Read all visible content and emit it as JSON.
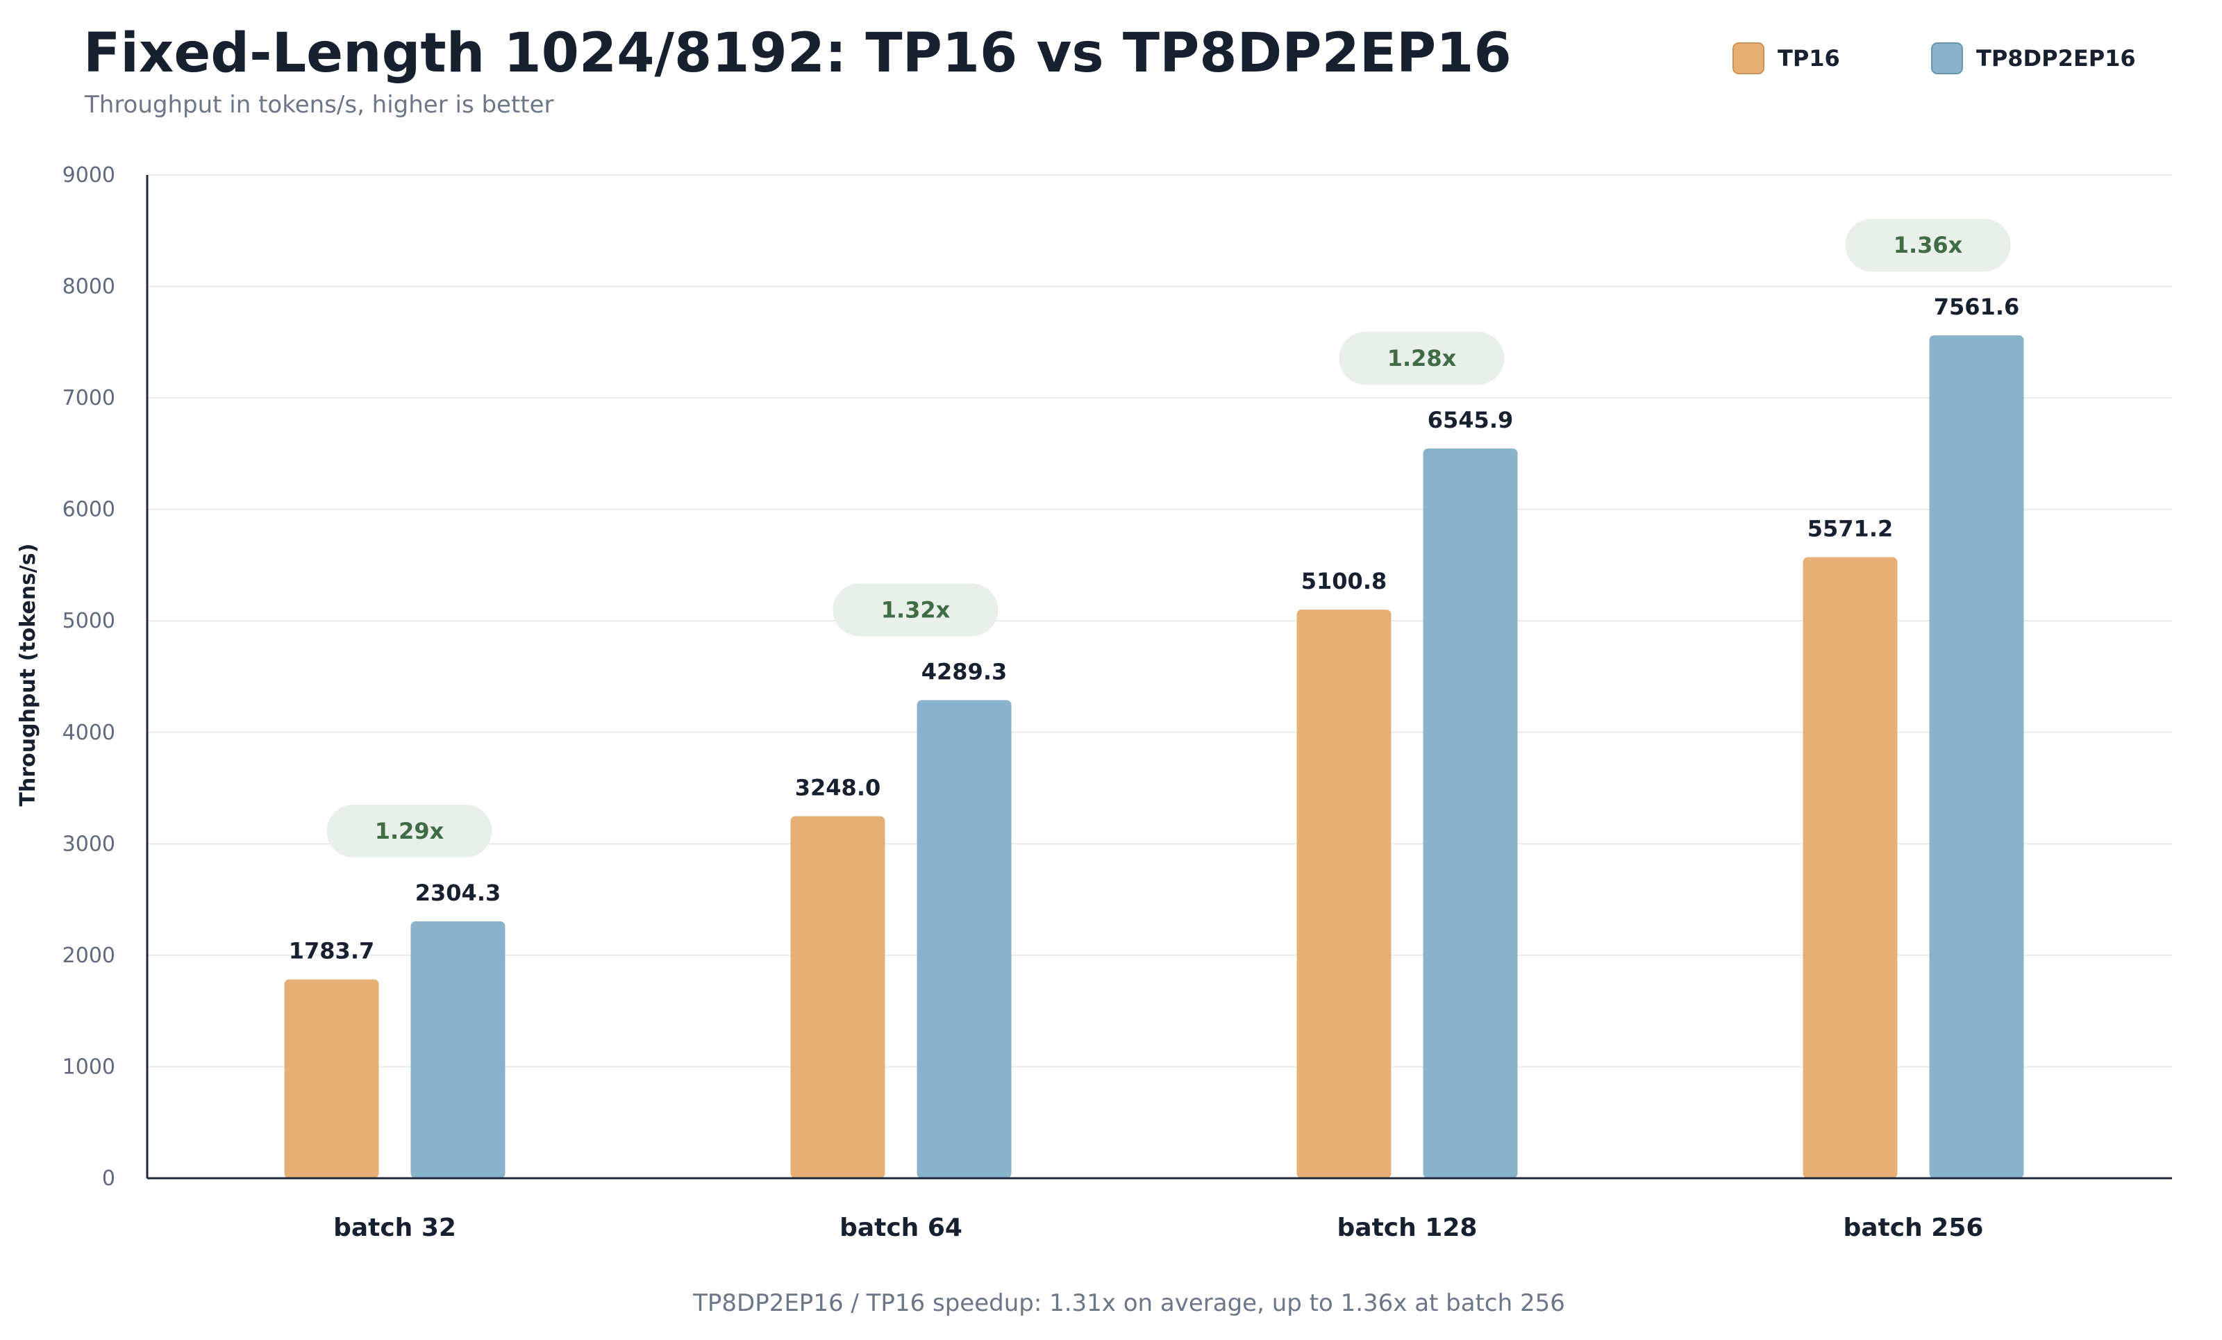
{
  "chart_data": {
    "type": "bar",
    "title": "Fixed-Length 1024/8192: TP16 vs TP8DP2EP16",
    "subtitle": "Throughput in tokens/s, higher is better",
    "xlabel": "",
    "ylabel": "Throughput (tokens/s)",
    "ylim": [
      0,
      9000
    ],
    "yticks": [
      0,
      1000,
      2000,
      3000,
      4000,
      5000,
      6000,
      7000,
      8000,
      9000
    ],
    "grid": true,
    "legend_position": "top-right",
    "categories": [
      "batch 32",
      "batch 64",
      "batch 128",
      "batch 256"
    ],
    "series": [
      {
        "name": "TP16",
        "color": "#e6b074",
        "values": [
          1783.7,
          3248.0,
          5100.8,
          5571.2
        ],
        "labels": [
          "1783.7",
          "3248.0",
          "5100.8",
          "5571.2"
        ]
      },
      {
        "name": "TP8DP2EP16",
        "color": "#89b2cb",
        "values": [
          2304.3,
          4289.3,
          6545.9,
          7561.6
        ],
        "labels": [
          "2304.3",
          "4289.3",
          "6545.9",
          "7561.6"
        ]
      }
    ],
    "speedup_labels": [
      "1.29x",
      "1.32x",
      "1.28x",
      "1.36x"
    ],
    "speedup_badge_color": "#e8f0e9",
    "footnote": "TP8DP2EP16 / TP16 speedup: 1.31x on average, up to 1.36x at batch 256"
  }
}
